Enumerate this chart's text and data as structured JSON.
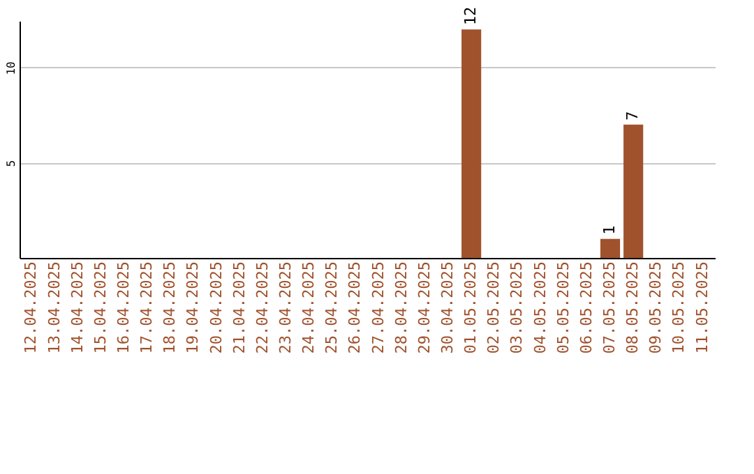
{
  "chart_data": {
    "type": "bar",
    "categories": [
      "12.04.2025",
      "13.04.2025",
      "14.04.2025",
      "15.04.2025",
      "16.04.2025",
      "17.04.2025",
      "18.04.2025",
      "19.04.2025",
      "20.04.2025",
      "21.04.2025",
      "22.04.2025",
      "23.04.2025",
      "24.04.2025",
      "25.04.2025",
      "26.04.2025",
      "27.04.2025",
      "28.04.2025",
      "29.04.2025",
      "30.04.2025",
      "01.05.2025",
      "02.05.2025",
      "03.05.2025",
      "04.05.2025",
      "05.05.2025",
      "06.05.2025",
      "07.05.2025",
      "08.05.2025",
      "09.05.2025",
      "10.05.2025",
      "11.05.2025"
    ],
    "values": [
      0,
      0,
      0,
      0,
      0,
      0,
      0,
      0,
      0,
      0,
      0,
      0,
      0,
      0,
      0,
      0,
      0,
      0,
      0,
      12,
      0,
      0,
      0,
      0,
      0,
      1,
      7,
      0,
      0,
      0
    ],
    "value_labels": [
      null,
      null,
      null,
      null,
      null,
      null,
      null,
      null,
      null,
      null,
      null,
      null,
      null,
      null,
      null,
      null,
      null,
      null,
      null,
      "12",
      null,
      null,
      null,
      null,
      null,
      "1",
      "7",
      null,
      null,
      null
    ],
    "color": "#a0522d",
    "ylim": [
      0,
      12.45
    ],
    "yticks": [
      5,
      10
    ],
    "grid": "y"
  }
}
